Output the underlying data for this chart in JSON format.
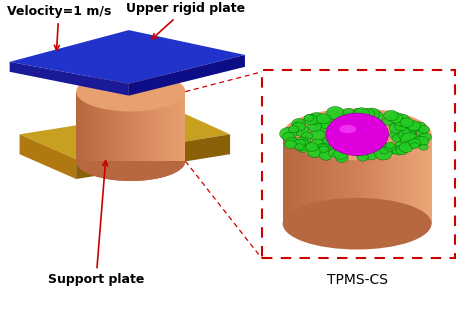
{
  "background_color": "#ffffff",
  "label_velocity": "Velocity=1 m/s",
  "label_upper": "Upper rigid plate",
  "label_support": "Support plate",
  "label_tpms": "TPMS-CS",
  "arrow_color": "#cc0000",
  "dashed_box_color": "#cc0000",
  "blue_top_color": "#2233cc",
  "blue_front_color": "#1a1a99",
  "blue_right_color": "#0d0d88",
  "cylinder_mid": "#d4845a",
  "cylinder_dark": "#b86840",
  "cylinder_light": "#e8a070",
  "gold_top_color": "#c8a020",
  "gold_front_color": "#b07810",
  "gold_right_color": "#8a6008",
  "magenta_color": "#dd00dd",
  "green_color": "#22cc22",
  "font_size_labels": 9,
  "font_size_tpms": 10
}
